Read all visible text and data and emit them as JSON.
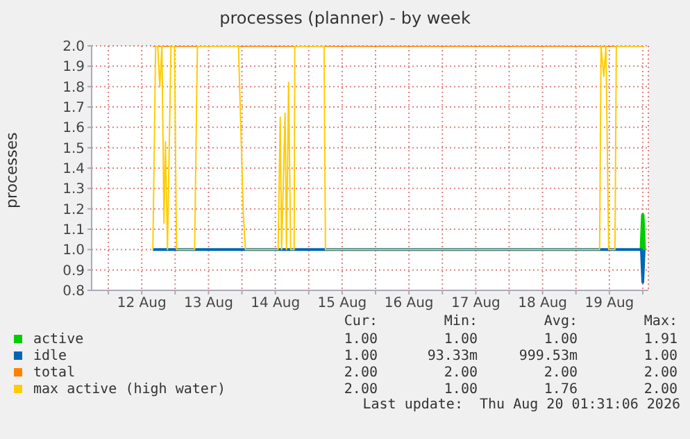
{
  "chart_data": {
    "type": "line",
    "title": "processes (planner) - by week",
    "ylabel": "processes",
    "xlim": [
      "2026-08-11T18:00",
      "2026-08-20T02:00"
    ],
    "xticks": [
      {
        "value": "2026-08-12T00:00",
        "label": null
      },
      {
        "value": "2026-08-12T12:00",
        "label": "12 Aug"
      },
      {
        "value": "2026-08-13T00:00",
        "label": null
      },
      {
        "value": "2026-08-13T12:00",
        "label": "13 Aug"
      },
      {
        "value": "2026-08-14T00:00",
        "label": null
      },
      {
        "value": "2026-08-14T12:00",
        "label": "14 Aug"
      },
      {
        "value": "2026-08-15T00:00",
        "label": null
      },
      {
        "value": "2026-08-15T12:00",
        "label": "15 Aug"
      },
      {
        "value": "2026-08-16T00:00",
        "label": null
      },
      {
        "value": "2026-08-16T12:00",
        "label": "16 Aug"
      },
      {
        "value": "2026-08-17T00:00",
        "label": null
      },
      {
        "value": "2026-08-17T12:00",
        "label": "17 Aug"
      },
      {
        "value": "2026-08-18T00:00",
        "label": null
      },
      {
        "value": "2026-08-18T12:00",
        "label": "18 Aug"
      },
      {
        "value": "2026-08-19T00:00",
        "label": null
      },
      {
        "value": "2026-08-19T12:00",
        "label": "19 Aug"
      },
      {
        "value": "2026-08-20T00:00",
        "label": null
      }
    ],
    "ylim": [
      0.8,
      2.0
    ],
    "yticks": [
      0.8,
      0.9,
      {
        "value": 1.0,
        "label": "1.0"
      },
      1.1,
      1.2,
      1.3,
      1.4,
      1.5,
      1.6,
      1.7,
      1.8,
      1.9,
      {
        "value": 2.0,
        "label": "2.0"
      }
    ],
    "grid": true,
    "legend": "bottom",
    "marker": "none",
    "line_style": "solid",
    "series": [
      {
        "name": "active",
        "color": "#00cc00",
        "x": [
          "2026-08-19T23:30",
          "2026-08-20T00:00",
          "2026-08-20T00:30"
        ],
        "values": [
          1.0,
          1.17,
          1.0
        ]
      },
      {
        "name": "idle",
        "color": "#0066b3",
        "x": [
          "2026-08-12T16:00",
          "2026-08-19T23:30",
          "2026-08-20T00:00",
          "2026-08-20T00:30"
        ],
        "values": [
          1.0,
          1.0,
          0.84,
          1.0
        ]
      },
      {
        "name": "total",
        "color": "#ff8000",
        "x": [
          "2026-08-12T16:00",
          "2026-08-20T00:30"
        ],
        "values": [
          2.0,
          2.0
        ]
      },
      {
        "name": "max active (high water)",
        "color": "#ffcc00",
        "x": [
          "2026-08-12T16:00",
          "2026-08-12T17:00",
          "2026-08-12T17:45",
          "2026-08-12T18:30",
          "2026-08-12T19:15",
          "2026-08-12T20:00",
          "2026-08-12T20:30",
          "2026-08-12T21:15",
          "2026-08-12T22:30",
          "2026-08-12T23:45",
          "2026-08-13T00:30",
          "2026-08-13T07:00",
          "2026-08-13T08:00",
          "2026-08-13T22:45",
          "2026-08-14T00:30",
          "2026-08-14T01:15",
          "2026-08-14T13:00",
          "2026-08-14T13:45",
          "2026-08-14T14:15",
          "2026-08-14T15:30",
          "2026-08-14T16:00",
          "2026-08-14T16:45",
          "2026-08-14T17:30",
          "2026-08-14T18:45",
          "2026-08-14T19:00",
          "2026-08-15T05:30",
          "2026-08-15T06:00",
          "2026-08-19T08:30",
          "2026-08-19T09:00",
          "2026-08-19T10:00",
          "2026-08-19T10:45",
          "2026-08-19T11:45",
          "2026-08-19T14:00",
          "2026-08-19T14:30",
          "2026-08-20T00:30"
        ],
        "values": [
          1.0,
          2.0,
          2.0,
          1.8,
          2.0,
          1.13,
          1.53,
          1.0,
          2.0,
          2.0,
          1.0,
          1.0,
          2.0,
          2.0,
          1.17,
          1.0,
          1.0,
          1.65,
          1.0,
          1.67,
          1.0,
          1.82,
          1.0,
          1.0,
          2.0,
          2.0,
          1.0,
          1.0,
          2.0,
          1.85,
          2.0,
          1.0,
          1.0,
          2.0,
          2.0
        ]
      }
    ],
    "annotations": [
      "Cur:",
      "Min:",
      "Avg:",
      "Max:",
      "1.00",
      "1.00",
      "1.00",
      "1.91",
      "1.00",
      "93.33m",
      "999.53m",
      "1.00",
      "2.00",
      "2.00",
      "2.00",
      "2.00",
      "2.00",
      "1.00",
      "1.76",
      "2.00",
      "Last update:  Thu Aug 20 01:31:06 2026"
    ]
  }
}
